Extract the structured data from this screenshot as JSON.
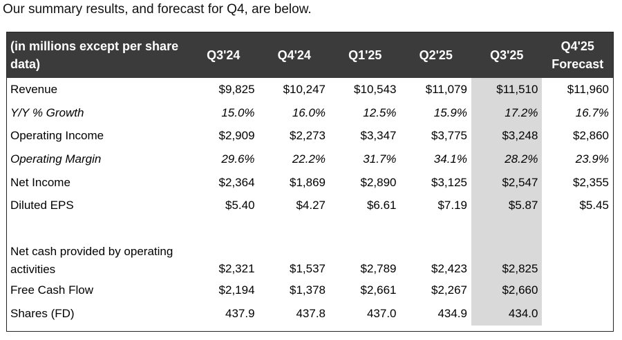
{
  "intro_text": "Our summary results, and forecast for Q4, are below.",
  "table": {
    "label_header": "(in millions except per share data)",
    "columns": [
      "Q3'24",
      "Q4'24",
      "Q1'25",
      "Q2'25",
      "Q3'25",
      "Q4'25 Forecast"
    ],
    "highlight_color": "#d9d9d9",
    "header_bg": "#3b3b3b",
    "rows": [
      {
        "label": "Revenue",
        "values": [
          "$9,825",
          "$10,247",
          "$10,543",
          "$11,079",
          "$11,510",
          "$11,960"
        ]
      },
      {
        "label": "Y/Y % Growth",
        "values": [
          "15.0%",
          "16.0%",
          "12.5%",
          "15.9%",
          "17.2%",
          "16.7%"
        ]
      },
      {
        "label": "Operating Income",
        "values": [
          "$2,909",
          "$2,273",
          "$3,347",
          "$3,775",
          "$3,248",
          "$2,860"
        ]
      },
      {
        "label": "Operating Margin",
        "values": [
          "29.6%",
          "22.2%",
          "31.7%",
          "34.1%",
          "28.2%",
          "23.9%"
        ]
      },
      {
        "label": "Net Income",
        "values": [
          "$2,364",
          "$1,869",
          "$2,890",
          "$3,125",
          "$2,547",
          "$2,355"
        ]
      },
      {
        "label": "Diluted EPS",
        "values": [
          "$5.40",
          "$4.27",
          "$6.61",
          "$7.19",
          "$5.87",
          "$5.45"
        ]
      },
      {
        "label": "Net cash provided by operating activities",
        "values": [
          "$2,321",
          "$1,537",
          "$2,789",
          "$2,423",
          "$2,825",
          ""
        ]
      },
      {
        "label": "Free Cash Flow",
        "values": [
          "$2,194",
          "$1,378",
          "$2,661",
          "$2,267",
          "$2,660",
          ""
        ]
      },
      {
        "label": "Shares (FD)",
        "values": [
          "437.9",
          "437.8",
          "437.0",
          "434.9",
          "434.0",
          ""
        ]
      }
    ]
  }
}
